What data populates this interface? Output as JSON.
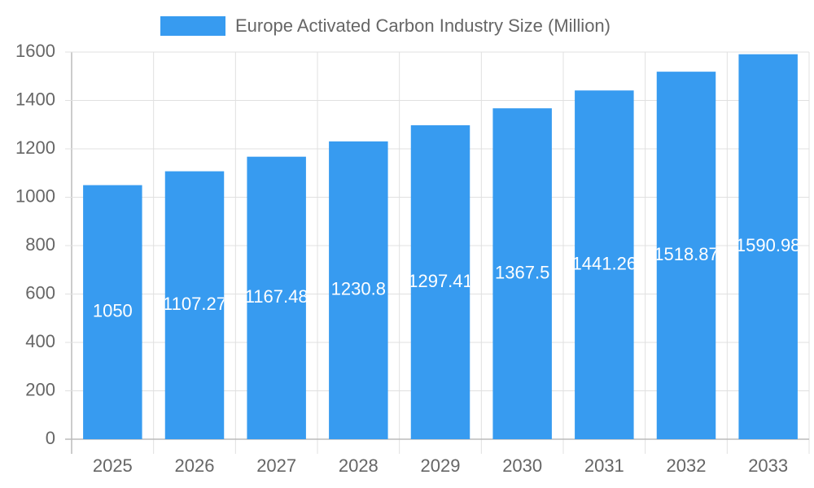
{
  "chart_data": {
    "type": "bar",
    "categories": [
      "2025",
      "2026",
      "2027",
      "2028",
      "2029",
      "2030",
      "2031",
      "2032",
      "2033"
    ],
    "series": [
      {
        "name": "Europe Activated Carbon Industry Size (Million)",
        "color": "#379bf0",
        "values": [
          1050,
          1107.27,
          1167.48,
          1230.8,
          1297.41,
          1367.5,
          1441.26,
          1518.87,
          1590.98
        ]
      }
    ],
    "ylim": [
      0,
      1600
    ],
    "yticks": [
      0,
      200,
      400,
      600,
      800,
      1000,
      1200,
      1400,
      1600
    ],
    "grid": true
  }
}
